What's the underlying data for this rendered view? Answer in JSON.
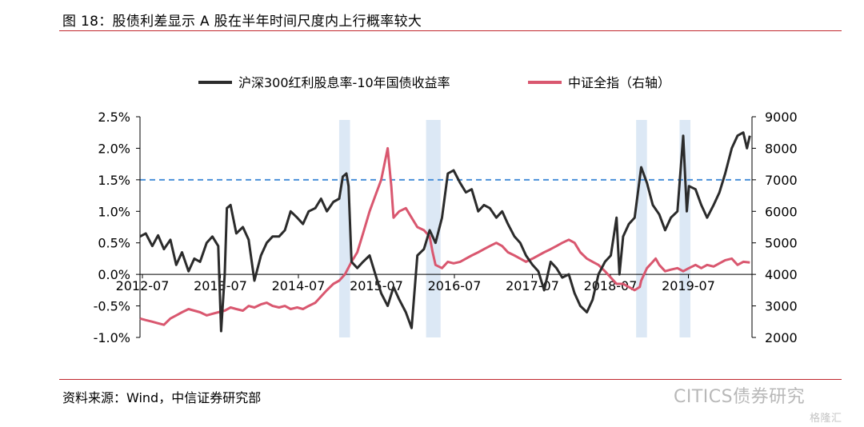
{
  "header": {
    "title": "图 18：股债利差显示 A 股在半年时间尺度内上行概率较大"
  },
  "footer": {
    "source": "资料来源：Wind，中信证券研究部"
  },
  "watermark": {
    "text": "CITICS债券研究",
    "text2": "格隆汇"
  },
  "colors": {
    "black_series": "#2b2b2b",
    "pink_series": "#d9576f",
    "shade": "#dce8f5",
    "dashed": "#4a90d9",
    "rule": "#c0262d"
  },
  "chart_data": {
    "type": "line",
    "title": "",
    "legend": [
      "沪深300红利股息率-10年国债收益率",
      "中证全指（右轴）"
    ],
    "legend_position": "top",
    "x_ticks": [
      "2012-07",
      "2013-07",
      "2014-07",
      "2015-07",
      "2016-07",
      "2017-07",
      "2018-07",
      "2019-07"
    ],
    "y_left": {
      "ticks": [
        "2.5%",
        "2.0%",
        "1.5%",
        "1.0%",
        "0.5%",
        "0.0%",
        "-0.5%",
        "-1.0%"
      ],
      "min": -1.0,
      "max": 2.5,
      "unit": "%"
    },
    "y_right": {
      "ticks": [
        "9000",
        "8000",
        "7000",
        "6000",
        "5000",
        "4000",
        "3000",
        "2000"
      ],
      "min": 2000,
      "max": 9000
    },
    "threshold_line": {
      "value": 1.5,
      "style": "dashed"
    },
    "shaded_periods": [
      [
        2014.75,
        2014.9
      ],
      [
        2015.95,
        2016.15
      ],
      [
        2018.85,
        2019.0
      ],
      [
        2019.45,
        2019.6
      ]
    ],
    "series": [
      {
        "name": "沪深300红利股息率-10年国债收益率",
        "axis": "left",
        "points": [
          [
            2012.0,
            0.6
          ],
          [
            2012.08,
            0.65
          ],
          [
            2012.17,
            0.45
          ],
          [
            2012.25,
            0.62
          ],
          [
            2012.33,
            0.4
          ],
          [
            2012.42,
            0.55
          ],
          [
            2012.5,
            0.15
          ],
          [
            2012.58,
            0.35
          ],
          [
            2012.67,
            0.05
          ],
          [
            2012.75,
            0.25
          ],
          [
            2012.83,
            0.2
          ],
          [
            2012.92,
            0.5
          ],
          [
            2013.0,
            0.6
          ],
          [
            2013.08,
            0.45
          ],
          [
            2013.12,
            -0.9
          ],
          [
            2013.17,
            0.0
          ],
          [
            2013.2,
            1.05
          ],
          [
            2013.25,
            1.1
          ],
          [
            2013.33,
            0.65
          ],
          [
            2013.42,
            0.75
          ],
          [
            2013.5,
            0.55
          ],
          [
            2013.58,
            -0.1
          ],
          [
            2013.67,
            0.3
          ],
          [
            2013.75,
            0.5
          ],
          [
            2013.83,
            0.6
          ],
          [
            2013.92,
            0.6
          ],
          [
            2014.0,
            0.7
          ],
          [
            2014.08,
            1.0
          ],
          [
            2014.17,
            0.9
          ],
          [
            2014.25,
            0.8
          ],
          [
            2014.33,
            1.0
          ],
          [
            2014.42,
            1.05
          ],
          [
            2014.5,
            1.2
          ],
          [
            2014.58,
            1.0
          ],
          [
            2014.67,
            1.15
          ],
          [
            2014.75,
            1.2
          ],
          [
            2014.8,
            1.55
          ],
          [
            2014.85,
            1.6
          ],
          [
            2014.88,
            1.4
          ],
          [
            2014.92,
            0.2
          ],
          [
            2015.0,
            0.1
          ],
          [
            2015.08,
            0.2
          ],
          [
            2015.17,
            0.3
          ],
          [
            2015.25,
            0.0
          ],
          [
            2015.33,
            -0.3
          ],
          [
            2015.42,
            -0.5
          ],
          [
            2015.5,
            -0.2
          ],
          [
            2015.58,
            -0.4
          ],
          [
            2015.67,
            -0.6
          ],
          [
            2015.75,
            -0.85
          ],
          [
            2015.83,
            0.3
          ],
          [
            2015.92,
            0.4
          ],
          [
            2016.0,
            0.7
          ],
          [
            2016.08,
            0.5
          ],
          [
            2016.17,
            0.9
          ],
          [
            2016.25,
            1.6
          ],
          [
            2016.33,
            1.65
          ],
          [
            2016.42,
            1.45
          ],
          [
            2016.5,
            1.3
          ],
          [
            2016.58,
            1.35
          ],
          [
            2016.67,
            1.0
          ],
          [
            2016.75,
            1.1
          ],
          [
            2016.83,
            1.05
          ],
          [
            2016.92,
            0.9
          ],
          [
            2017.0,
            1.0
          ],
          [
            2017.08,
            0.8
          ],
          [
            2017.17,
            0.6
          ],
          [
            2017.25,
            0.5
          ],
          [
            2017.33,
            0.3
          ],
          [
            2017.42,
            0.15
          ],
          [
            2017.5,
            0.05
          ],
          [
            2017.58,
            -0.25
          ],
          [
            2017.67,
            0.2
          ],
          [
            2017.75,
            0.1
          ],
          [
            2017.83,
            -0.05
          ],
          [
            2017.92,
            0.0
          ],
          [
            2018.0,
            -0.3
          ],
          [
            2018.08,
            -0.5
          ],
          [
            2018.17,
            -0.6
          ],
          [
            2018.25,
            -0.4
          ],
          [
            2018.33,
            0.0
          ],
          [
            2018.42,
            0.2
          ],
          [
            2018.5,
            0.3
          ],
          [
            2018.58,
            0.9
          ],
          [
            2018.62,
            0.0
          ],
          [
            2018.67,
            0.6
          ],
          [
            2018.75,
            0.8
          ],
          [
            2018.83,
            0.9
          ],
          [
            2018.92,
            1.7
          ],
          [
            2019.0,
            1.45
          ],
          [
            2019.08,
            1.1
          ],
          [
            2019.17,
            0.95
          ],
          [
            2019.25,
            0.7
          ],
          [
            2019.33,
            0.9
          ],
          [
            2019.42,
            1.0
          ],
          [
            2019.5,
            2.2
          ],
          [
            2019.55,
            1.0
          ],
          [
            2019.58,
            1.4
          ],
          [
            2019.67,
            1.35
          ],
          [
            2019.75,
            1.1
          ],
          [
            2019.83,
            0.9
          ],
          [
            2019.92,
            1.1
          ],
          [
            2020.0,
            1.3
          ],
          [
            2020.08,
            1.6
          ],
          [
            2020.17,
            2.0
          ],
          [
            2020.25,
            2.2
          ],
          [
            2020.33,
            2.25
          ],
          [
            2020.38,
            2.0
          ],
          [
            2020.42,
            2.2
          ]
        ]
      },
      {
        "name": "中证全指（右轴）",
        "axis": "right",
        "points": [
          [
            2012.0,
            2600
          ],
          [
            2012.08,
            2550
          ],
          [
            2012.17,
            2500
          ],
          [
            2012.25,
            2450
          ],
          [
            2012.33,
            2400
          ],
          [
            2012.42,
            2600
          ],
          [
            2012.5,
            2700
          ],
          [
            2012.58,
            2800
          ],
          [
            2012.67,
            2900
          ],
          [
            2012.75,
            2850
          ],
          [
            2012.83,
            2800
          ],
          [
            2012.92,
            2700
          ],
          [
            2013.0,
            2750
          ],
          [
            2013.08,
            2800
          ],
          [
            2013.17,
            2850
          ],
          [
            2013.25,
            2950
          ],
          [
            2013.33,
            2900
          ],
          [
            2013.42,
            2850
          ],
          [
            2013.5,
            3000
          ],
          [
            2013.58,
            2950
          ],
          [
            2013.67,
            3050
          ],
          [
            2013.75,
            3100
          ],
          [
            2013.83,
            3000
          ],
          [
            2013.92,
            2950
          ],
          [
            2014.0,
            3000
          ],
          [
            2014.08,
            2900
          ],
          [
            2014.17,
            2950
          ],
          [
            2014.25,
            2900
          ],
          [
            2014.33,
            3000
          ],
          [
            2014.42,
            3100
          ],
          [
            2014.5,
            3300
          ],
          [
            2014.58,
            3500
          ],
          [
            2014.67,
            3700
          ],
          [
            2014.75,
            3800
          ],
          [
            2014.83,
            4000
          ],
          [
            2014.92,
            4400
          ],
          [
            2015.0,
            4700
          ],
          [
            2015.08,
            5300
          ],
          [
            2015.17,
            6000
          ],
          [
            2015.25,
            6500
          ],
          [
            2015.33,
            7000
          ],
          [
            2015.42,
            8000
          ],
          [
            2015.47,
            6800
          ],
          [
            2015.5,
            5800
          ],
          [
            2015.58,
            6000
          ],
          [
            2015.67,
            6100
          ],
          [
            2015.75,
            5800
          ],
          [
            2015.83,
            5500
          ],
          [
            2015.92,
            5400
          ],
          [
            2016.0,
            5200
          ],
          [
            2016.04,
            4700
          ],
          [
            2016.08,
            4300
          ],
          [
            2016.17,
            4200
          ],
          [
            2016.25,
            4400
          ],
          [
            2016.33,
            4350
          ],
          [
            2016.42,
            4400
          ],
          [
            2016.5,
            4500
          ],
          [
            2016.58,
            4600
          ],
          [
            2016.67,
            4700
          ],
          [
            2016.75,
            4800
          ],
          [
            2016.83,
            4900
          ],
          [
            2016.92,
            5000
          ],
          [
            2017.0,
            4900
          ],
          [
            2017.08,
            4700
          ],
          [
            2017.17,
            4600
          ],
          [
            2017.25,
            4500
          ],
          [
            2017.33,
            4400
          ],
          [
            2017.42,
            4500
          ],
          [
            2017.5,
            4600
          ],
          [
            2017.58,
            4700
          ],
          [
            2017.67,
            4800
          ],
          [
            2017.75,
            4900
          ],
          [
            2017.83,
            5000
          ],
          [
            2017.92,
            5100
          ],
          [
            2018.0,
            5000
          ],
          [
            2018.08,
            4700
          ],
          [
            2018.17,
            4500
          ],
          [
            2018.25,
            4400
          ],
          [
            2018.33,
            4300
          ],
          [
            2018.42,
            4100
          ],
          [
            2018.5,
            3900
          ],
          [
            2018.58,
            3700
          ],
          [
            2018.67,
            3700
          ],
          [
            2018.75,
            3600
          ],
          [
            2018.83,
            3500
          ],
          [
            2018.9,
            3600
          ],
          [
            2018.92,
            3800
          ],
          [
            2019.0,
            4200
          ],
          [
            2019.08,
            4400
          ],
          [
            2019.12,
            4500
          ],
          [
            2019.17,
            4300
          ],
          [
            2019.25,
            4100
          ],
          [
            2019.33,
            4150
          ],
          [
            2019.42,
            4200
          ],
          [
            2019.5,
            4100
          ],
          [
            2019.58,
            4200
          ],
          [
            2019.67,
            4300
          ],
          [
            2019.75,
            4200
          ],
          [
            2019.83,
            4300
          ],
          [
            2019.92,
            4250
          ],
          [
            2020.0,
            4350
          ],
          [
            2020.08,
            4450
          ],
          [
            2020.17,
            4500
          ],
          [
            2020.25,
            4300
          ],
          [
            2020.33,
            4400
          ],
          [
            2020.42,
            4380
          ]
        ]
      }
    ]
  }
}
